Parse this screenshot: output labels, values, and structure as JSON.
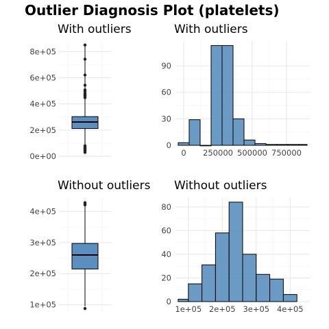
{
  "figure": {
    "title": "Outlier Diagnosis Plot (platelets)"
  },
  "colors": {
    "fill": "#5b8fbf",
    "stroke": "#000000",
    "point": "#222222"
  },
  "chart_data": [
    {
      "id": "box-with",
      "type": "box",
      "title": "With outliers",
      "ylim": [
        0,
        880000
      ],
      "yticks": [
        0,
        200000,
        400000,
        600000,
        800000
      ],
      "ytick_labels": [
        "0e+00",
        "2e+05",
        "4e+05",
        "6e+05",
        "8e+05"
      ],
      "stats": {
        "q1": 212000,
        "median": 262000,
        "q3": 303000,
        "whisker_low": 25100,
        "whisker_high": 850000
      },
      "outliers": [
        850000,
        742000,
        621000,
        543000,
        507000,
        497000,
        481000,
        470000,
        460000,
        448000,
        80000,
        70000,
        62000,
        55000,
        47000,
        40000,
        30000
      ]
    },
    {
      "id": "hist-with",
      "type": "bar",
      "title": "With outliers",
      "xlim": [
        -60000,
        920000
      ],
      "ylim": [
        0,
        118
      ],
      "xticks": [
        0,
        250000,
        500000,
        750000
      ],
      "xtick_labels": [
        "0",
        "250000",
        "500000",
        "750000"
      ],
      "yticks": [
        0,
        30,
        60,
        90
      ],
      "ytick_labels": [
        "0",
        "30",
        "60",
        "90"
      ],
      "bins": [
        {
          "x0": -40000,
          "x1": 40000,
          "count": 3
        },
        {
          "x0": 40000,
          "x1": 120000,
          "count": 29
        },
        {
          "x0": 120000,
          "x1": 200000,
          "count": 0
        },
        {
          "x0": 200000,
          "x1": 280000,
          "count": 113
        },
        {
          "x0": 280000,
          "x1": 360000,
          "count": 113
        },
        {
          "x0": 360000,
          "x1": 440000,
          "count": 30
        },
        {
          "x0": 440000,
          "x1": 520000,
          "count": 6
        },
        {
          "x0": 520000,
          "x1": 600000,
          "count": 2
        },
        {
          "x0": 600000,
          "x1": 680000,
          "count": 1
        },
        {
          "x0": 680000,
          "x1": 760000,
          "count": 1
        },
        {
          "x0": 760000,
          "x1": 840000,
          "count": 1
        },
        {
          "x0": 840000,
          "x1": 900000,
          "count": 1
        }
      ]
    },
    {
      "id": "box-without",
      "type": "box",
      "title": "Without outliers",
      "ylim": [
        75000,
        445000
      ],
      "yticks": [
        100000,
        200000,
        300000,
        400000
      ],
      "ytick_labels": [
        "1e+05",
        "2e+05",
        "3e+05",
        "4e+05"
      ],
      "stats": {
        "q1": 215000,
        "median": 260000,
        "q3": 297000,
        "whisker_low": 95000,
        "whisker_high": 420000
      },
      "outliers": [
        88000,
        421000,
        424000,
        428000
      ]
    },
    {
      "id": "hist-without",
      "type": "bar",
      "title": "Without outliers",
      "xlim": [
        62000,
        458000
      ],
      "ylim": [
        0,
        88
      ],
      "xticks": [
        100000,
        200000,
        300000,
        400000
      ],
      "xtick_labels": [
        "1e+05",
        "2e+05",
        "3e+05",
        "4e+05"
      ],
      "yticks": [
        0,
        20,
        40,
        60,
        80
      ],
      "ytick_labels": [
        "0",
        "20",
        "40",
        "60",
        "80"
      ],
      "bins": [
        {
          "x0": 70000,
          "x1": 100000,
          "count": 2
        },
        {
          "x0": 100000,
          "x1": 140000,
          "count": 15
        },
        {
          "x0": 140000,
          "x1": 180000,
          "count": 31
        },
        {
          "x0": 180000,
          "x1": 220000,
          "count": 58
        },
        {
          "x0": 220000,
          "x1": 260000,
          "count": 84
        },
        {
          "x0": 260000,
          "x1": 300000,
          "count": 40
        },
        {
          "x0": 300000,
          "x1": 340000,
          "count": 23
        },
        {
          "x0": 340000,
          "x1": 380000,
          "count": 19
        },
        {
          "x0": 380000,
          "x1": 420000,
          "count": 6
        }
      ]
    }
  ]
}
